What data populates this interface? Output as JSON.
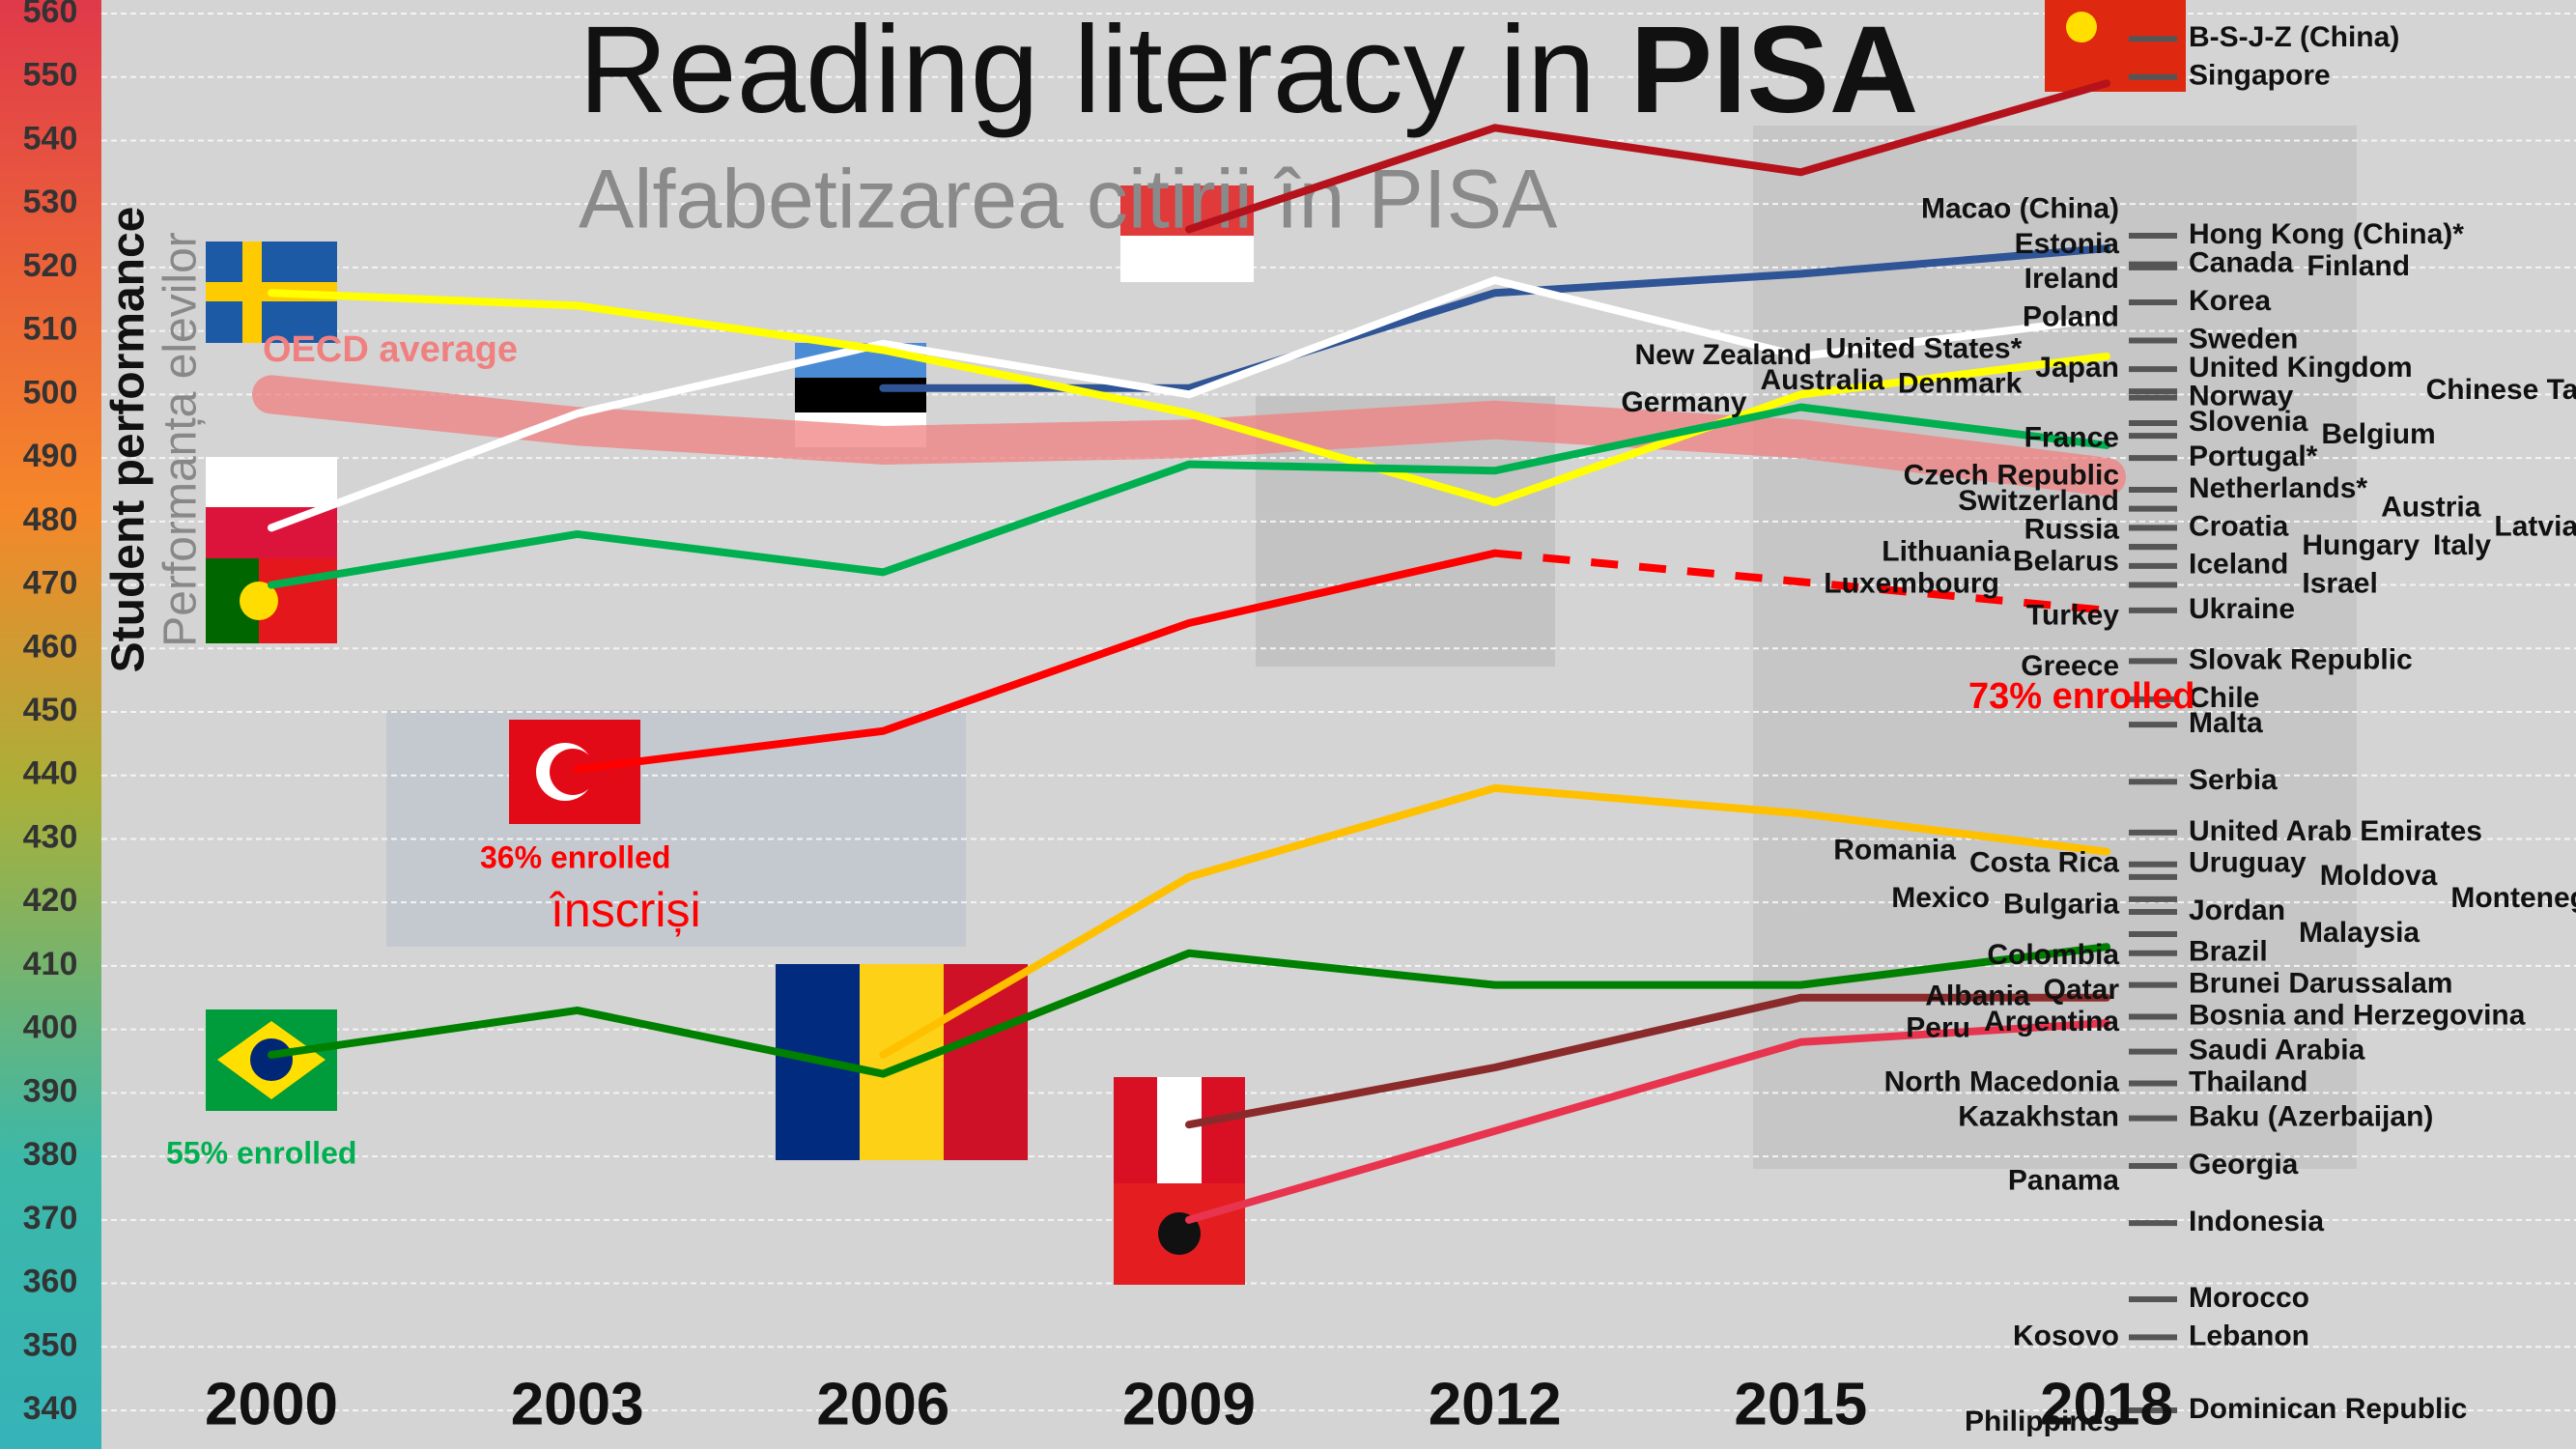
{
  "chart_data": {
    "type": "line",
    "title_parts": [
      "Reading literacy in",
      "PISA"
    ],
    "subtitle": "Alfabetizarea citirii în PISA",
    "y_label": "Student performance",
    "y_label_ro": "Performanța elevilor",
    "categories": [
      "2000",
      "2003",
      "2006",
      "2009",
      "2012",
      "2015",
      "2018"
    ],
    "ylim": [
      340,
      560
    ],
    "yticks": [
      340,
      350,
      360,
      370,
      380,
      390,
      400,
      410,
      420,
      430,
      440,
      450,
      460,
      470,
      480,
      490,
      500,
      510,
      520,
      530,
      540,
      550,
      560
    ],
    "grid": true,
    "series": [
      {
        "name": "OECD average",
        "color": "#f08080",
        "values": [
          500,
          495,
          492,
          493,
          496,
          493,
          487
        ],
        "thick": true
      },
      {
        "color": "#b5121b",
        "values": [
          null,
          null,
          null,
          526,
          542,
          535,
          549
        ]
      },
      {
        "color": "#2f5597",
        "values": [
          null,
          null,
          501,
          501,
          516,
          519,
          523
        ]
      },
      {
        "color": "#ffffff",
        "values": [
          479,
          497,
          508,
          500,
          518,
          506,
          512
        ]
      },
      {
        "color": "#ffff00",
        "values": [
          516,
          514,
          507,
          497,
          483,
          500,
          506
        ]
      },
      {
        "color": "#00b050",
        "values": [
          470,
          478,
          472,
          489,
          488,
          498,
          492
        ]
      },
      {
        "color": "#ff0000",
        "values": [
          null,
          441,
          447,
          464,
          475,
          null,
          466
        ],
        "bridge_gaps": "dashed"
      },
      {
        "color": "#ffc000",
        "values": [
          null,
          null,
          396,
          424,
          438,
          434,
          428
        ]
      },
      {
        "color": "#008000",
        "values": [
          396,
          403,
          393,
          412,
          407,
          407,
          413
        ]
      },
      {
        "color": "#8b2a2a",
        "values": [
          null,
          null,
          null,
          385,
          394,
          405,
          405
        ]
      },
      {
        "color": "#e8344e",
        "values": [
          null,
          null,
          null,
          370,
          384,
          398,
          401
        ]
      }
    ],
    "annotations": [
      {
        "text": "36% enrolled",
        "color": "#ff0000"
      },
      {
        "text": "înscriși",
        "color": "#ff0000"
      },
      {
        "text": "55% enrolled",
        "color": "#00b050"
      },
      {
        "text": "73% enrolled",
        "color": "#ff0000"
      }
    ],
    "left_labels": [
      {
        "label": "Macao (China)",
        "value": 529
      },
      {
        "label": "Estonia",
        "value": 523.5
      },
      {
        "label": "Ireland",
        "value": 518
      },
      {
        "label": "Poland",
        "value": 512
      },
      {
        "label": "Japan",
        "value": 504
      },
      {
        "label": "United States*",
        "value": 507
      },
      {
        "label": "New Zealand",
        "value": 506
      },
      {
        "label": "Denmark",
        "value": 501.5
      },
      {
        "label": "Australia",
        "value": 502
      },
      {
        "label": "Germany",
        "value": 498.5
      },
      {
        "label": "France",
        "value": 493
      },
      {
        "label": "Czech Republic",
        "value": 487
      },
      {
        "label": "Switzerland",
        "value": 483
      },
      {
        "label": "Russia",
        "value": 478.5
      },
      {
        "label": "Belarus",
        "value": 473.5
      },
      {
        "label": "Lithuania",
        "value": 475
      },
      {
        "label": "Luxembourg",
        "value": 470
      },
      {
        "label": "Turkey",
        "value": 465
      },
      {
        "label": "Greece",
        "value": 457
      },
      {
        "label": "Costa Rica",
        "value": 426
      },
      {
        "label": "Romania",
        "value": 428
      },
      {
        "label": "Bulgaria",
        "value": 419.5
      },
      {
        "label": "Mexico",
        "value": 420.5
      },
      {
        "label": "Colombia",
        "value": 411.5
      },
      {
        "label": "Qatar",
        "value": 406
      },
      {
        "label": "Albania",
        "value": 405
      },
      {
        "label": "Argentina",
        "value": 401
      },
      {
        "label": "Peru",
        "value": 400
      },
      {
        "label": "North Macedonia",
        "value": 391.5
      },
      {
        "label": "Kazakhstan",
        "value": 386
      },
      {
        "label": "Panama",
        "value": 376
      },
      {
        "label": "Kosovo",
        "value": 351.5
      },
      {
        "label": "Philippines",
        "value": 338
      }
    ],
    "right_labels": [
      {
        "label": "B-S-J-Z (China)",
        "value": 556
      },
      {
        "label": "Singapore",
        "value": 550
      },
      {
        "label": "Hong Kong (China)*",
        "value": 525
      },
      {
        "label": "Canada",
        "value": 520.5
      },
      {
        "label": "Finland",
        "value": 520
      },
      {
        "label": "Korea",
        "value": 514.5
      },
      {
        "label": "Sweden",
        "value": 508.5
      },
      {
        "label": "United Kingdom",
        "value": 504
      },
      {
        "label": "Chinese Taipei",
        "value": 500.5
      },
      {
        "label": "Norway",
        "value": 499.5
      },
      {
        "label": "Slovenia",
        "value": 495.5
      },
      {
        "label": "Belgium",
        "value": 493.5
      },
      {
        "label": "Portugal*",
        "value": 490
      },
      {
        "label": "Netherlands*",
        "value": 485
      },
      {
        "label": "Austria",
        "value": 482
      },
      {
        "label": "Croatia",
        "value": 479
      },
      {
        "label": "Latvia",
        "value": 479
      },
      {
        "label": "Hungary",
        "value": 476
      },
      {
        "label": "Italy",
        "value": 476
      },
      {
        "label": "Iceland",
        "value": 473
      },
      {
        "label": "Israel",
        "value": 470
      },
      {
        "label": "Ukraine",
        "value": 466
      },
      {
        "label": "Slovak Republic",
        "value": 458
      },
      {
        "label": "Chile",
        "value": 452
      },
      {
        "label": "Malta",
        "value": 448
      },
      {
        "label": "Serbia",
        "value": 439
      },
      {
        "label": "United Arab Emirates",
        "value": 431
      },
      {
        "label": "Uruguay",
        "value": 426
      },
      {
        "label": "Moldova",
        "value": 424
      },
      {
        "label": "Montenegro",
        "value": 420.5
      },
      {
        "label": "Jordan",
        "value": 418.5
      },
      {
        "label": "Malaysia",
        "value": 415
      },
      {
        "label": "Brazil",
        "value": 412
      },
      {
        "label": "Brunei Darussalam",
        "value": 407
      },
      {
        "label": "Bosnia and Herzegovina",
        "value": 402
      },
      {
        "label": "Saudi Arabia",
        "value": 396.5
      },
      {
        "label": "Thailand",
        "value": 391.5
      },
      {
        "label": "Baku (Azerbaijan)",
        "value": 386
      },
      {
        "label": "Georgia",
        "value": 378.5
      },
      {
        "label": "Indonesia",
        "value": 369.5
      },
      {
        "label": "Morocco",
        "value": 357.5
      },
      {
        "label": "Lebanon",
        "value": 351.5
      },
      {
        "label": "Dominican Republic",
        "value": 340
      }
    ]
  }
}
